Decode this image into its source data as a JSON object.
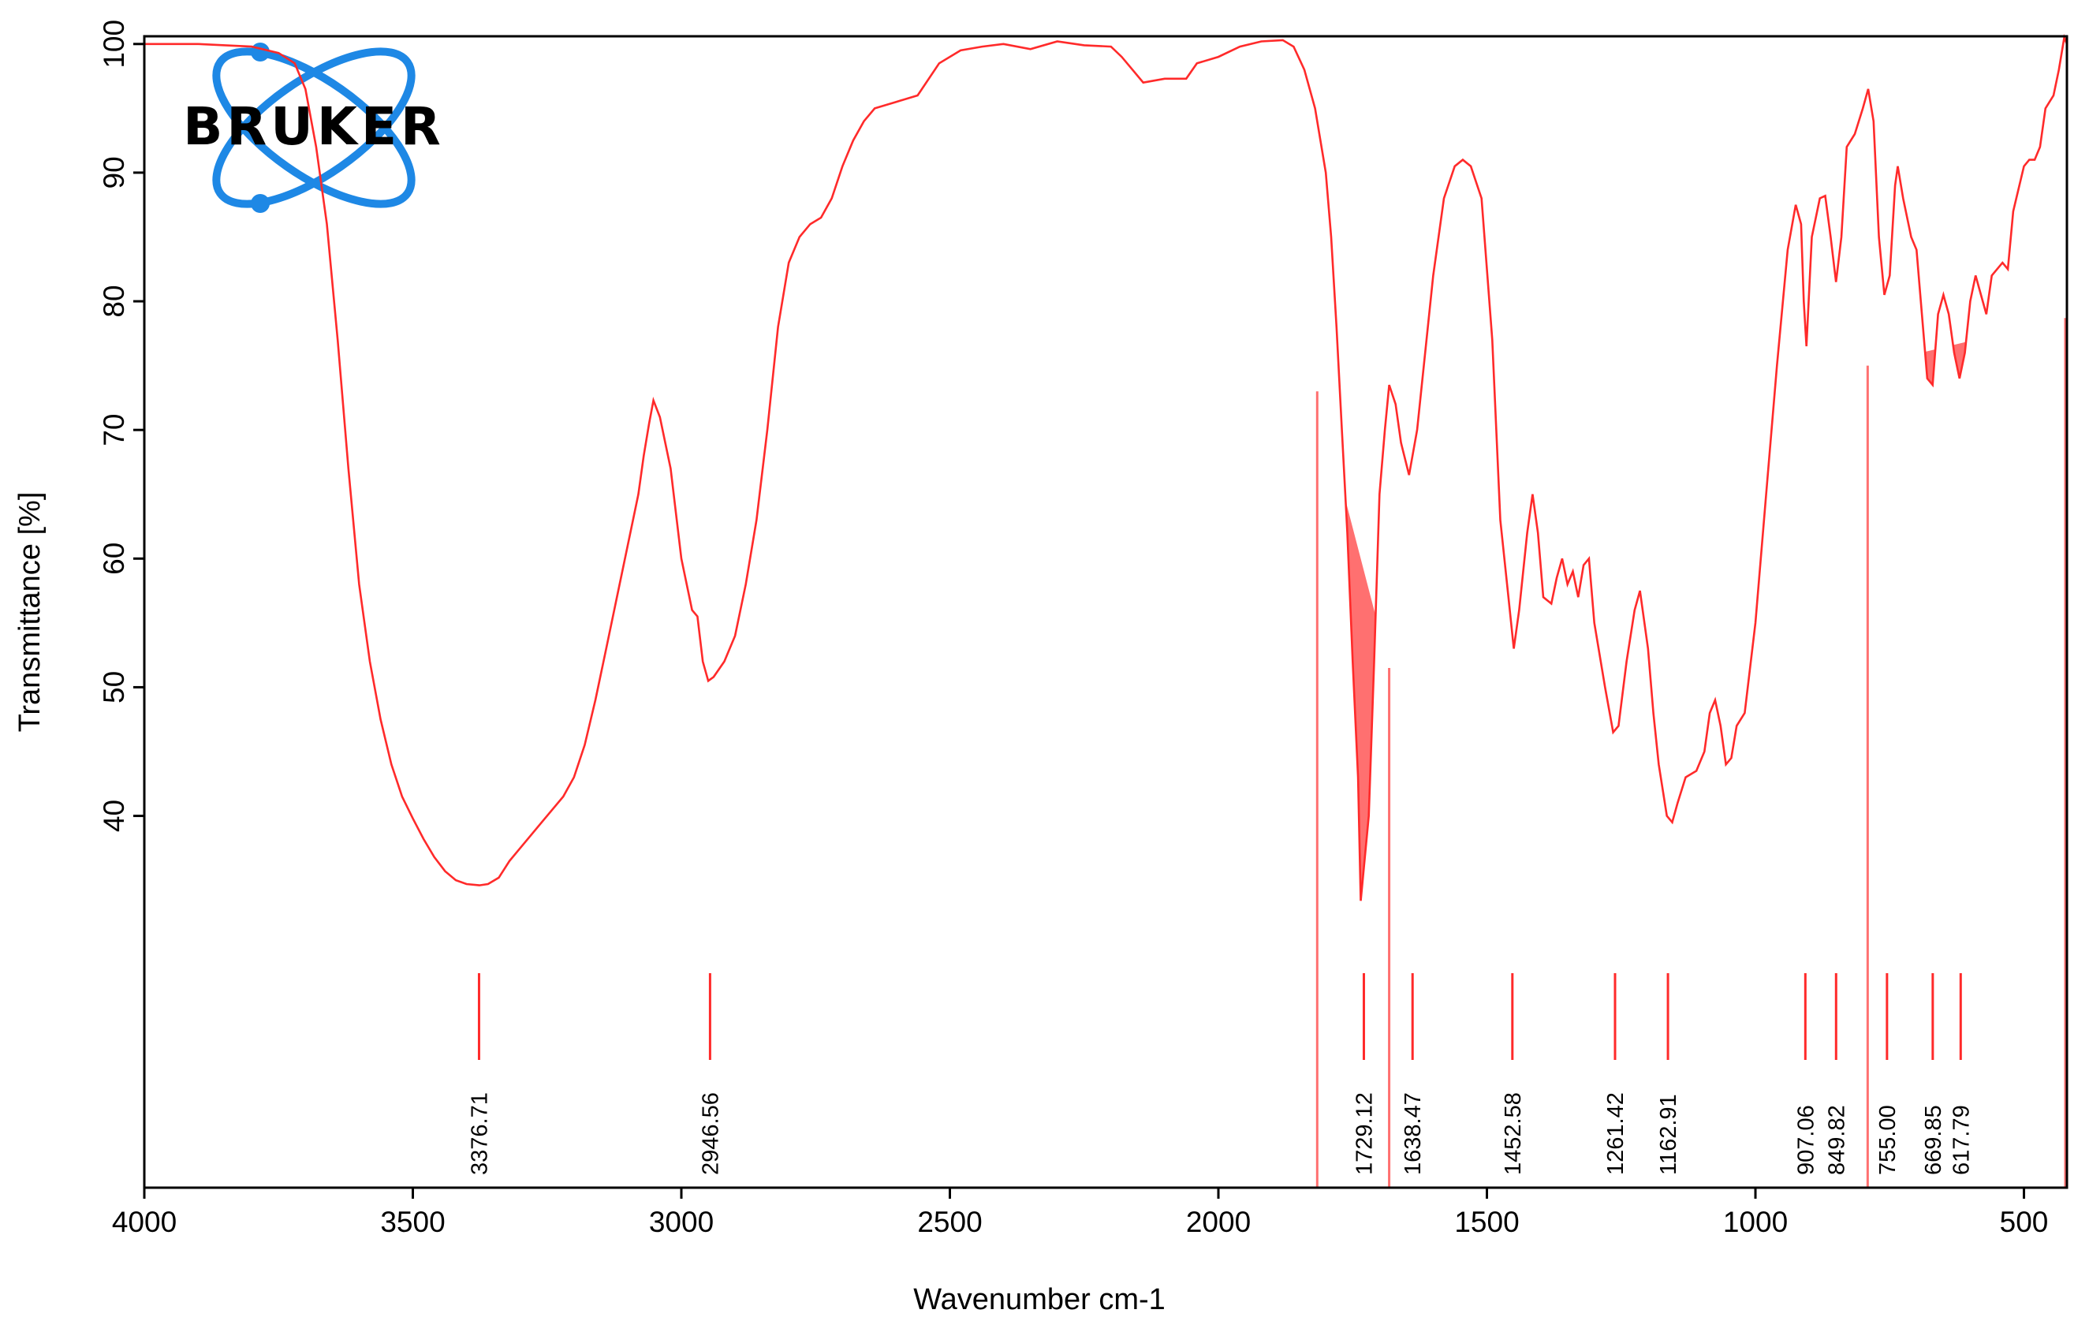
{
  "logo": {
    "text": "BRUKER"
  },
  "chart_data": {
    "type": "line",
    "xlabel": "Wavenumber cm-1",
    "ylabel": "Transmittance [%]",
    "color": "#ff2a2a",
    "fill_color": "#ff7070",
    "xlim": [
      4000,
      420
    ],
    "ylim": [
      11.1,
      100.6
    ],
    "xticks": [
      4000,
      3500,
      3000,
      2500,
      2000,
      1500,
      1000,
      500
    ],
    "yticks": [
      40,
      50,
      60,
      70,
      80,
      90,
      100
    ],
    "x": [
      4000,
      3900,
      3800,
      3750,
      3720,
      3700,
      3680,
      3660,
      3640,
      3620,
      3600,
      3580,
      3560,
      3540,
      3520,
      3500,
      3480,
      3460,
      3440,
      3420,
      3400,
      3376,
      3360,
      3340,
      3320,
      3300,
      3260,
      3220,
      3200,
      3180,
      3160,
      3140,
      3120,
      3100,
      3080,
      3070,
      3060,
      3052,
      3040,
      3020,
      3000,
      2980,
      2970,
      2960,
      2950,
      2940,
      2920,
      2900,
      2880,
      2860,
      2840,
      2820,
      2800,
      2780,
      2760,
      2740,
      2720,
      2700,
      2680,
      2660,
      2640,
      2600,
      2560,
      2520,
      2480,
      2440,
      2400,
      2350,
      2300,
      2250,
      2200,
      2180,
      2160,
      2140,
      2100,
      2060,
      2040,
      2000,
      1960,
      1920,
      1880,
      1860,
      1840,
      1820,
      1800,
      1790,
      1780,
      1770,
      1760,
      1750,
      1740,
      1735,
      1720,
      1710,
      1700,
      1690,
      1682,
      1670,
      1660,
      1645,
      1630,
      1600,
      1580,
      1560,
      1545,
      1530,
      1510,
      1490,
      1475,
      1460,
      1450,
      1440,
      1425,
      1415,
      1405,
      1395,
      1380,
      1370,
      1360,
      1350,
      1340,
      1330,
      1320,
      1310,
      1300,
      1280,
      1265,
      1255,
      1240,
      1225,
      1215,
      1200,
      1190,
      1180,
      1165,
      1155,
      1145,
      1130,
      1110,
      1095,
      1085,
      1075,
      1065,
      1055,
      1045,
      1035,
      1020,
      1000,
      980,
      960,
      940,
      925,
      915,
      910,
      905,
      895,
      880,
      870,
      860,
      850,
      840,
      830,
      815,
      800,
      790,
      780,
      770,
      760,
      750,
      740,
      735,
      725,
      710,
      700,
      690,
      680,
      670,
      660,
      650,
      640,
      630,
      620,
      610,
      600,
      590,
      580,
      570,
      560,
      540,
      530,
      520,
      500,
      490,
      480,
      470,
      460,
      445,
      435,
      425,
      420
    ],
    "values": [
      100,
      100,
      99.8,
      99.3,
      98.5,
      96.5,
      92,
      86,
      77,
      67,
      58,
      52,
      47.5,
      44,
      41.5,
      39.8,
      38.2,
      36.8,
      35.7,
      35,
      34.7,
      34.6,
      34.7,
      35.2,
      36.5,
      37.5,
      39.5,
      41.5,
      43,
      45.5,
      49,
      53,
      57,
      61,
      65,
      68,
      70.5,
      72.3,
      71,
      67,
      60,
      56,
      55.5,
      52,
      50.5,
      50.8,
      52,
      54,
      58,
      63,
      70,
      78,
      83,
      85,
      86,
      86.5,
      88,
      90.5,
      92.5,
      94,
      95,
      95.5,
      96,
      98.5,
      99.5,
      99.8,
      100,
      99.6,
      100.2,
      99.9,
      99.8,
      99,
      98,
      97,
      97.3,
      97.3,
      98.5,
      99,
      99.8,
      100.2,
      100.3,
      99.8,
      98,
      95,
      90,
      85,
      78,
      70,
      62,
      52,
      43,
      33.4,
      40,
      52,
      65,
      70,
      73.5,
      72,
      69,
      66.5,
      70,
      82,
      88,
      90.5,
      91,
      90.5,
      88,
      77,
      63,
      57,
      53,
      56,
      62,
      65,
      62,
      57,
      56.5,
      58.5,
      60,
      58,
      59,
      57,
      59.5,
      60,
      55,
      50,
      46.5,
      47,
      52,
      56,
      57.5,
      53,
      48,
      44,
      40,
      39.5,
      41,
      43,
      43.5,
      45,
      48,
      49,
      47,
      44,
      44.5,
      47,
      48,
      55,
      65,
      75,
      84,
      87.5,
      86,
      80,
      76.5,
      85,
      88,
      88.2,
      85,
      81.5,
      85,
      92,
      93,
      95,
      96.5,
      94,
      85,
      80.5,
      82,
      89,
      90.5,
      88,
      85,
      84,
      79,
      74,
      73.5,
      79,
      80.5,
      79,
      76,
      74,
      76,
      80,
      82,
      80.5,
      79,
      82,
      83,
      82.5,
      87,
      90.5,
      91,
      91,
      92,
      95,
      96,
      98,
      100.5,
      100
    ],
    "peaks": [
      3376.71,
      2946.56,
      1729.12,
      1638.47,
      1452.58,
      1261.42,
      1162.91,
      907.06,
      849.82,
      {
        "value": 755,
        "label": "755.00"
      },
      669.85,
      617.79
    ],
    "integration_regions": [
      {
        "x": [
          1816,
          1682
        ],
        "y": [
          73,
          51.5
        ]
      },
      {
        "x": [
          791,
          423
        ],
        "y": [
          75,
          78.7
        ]
      }
    ]
  }
}
